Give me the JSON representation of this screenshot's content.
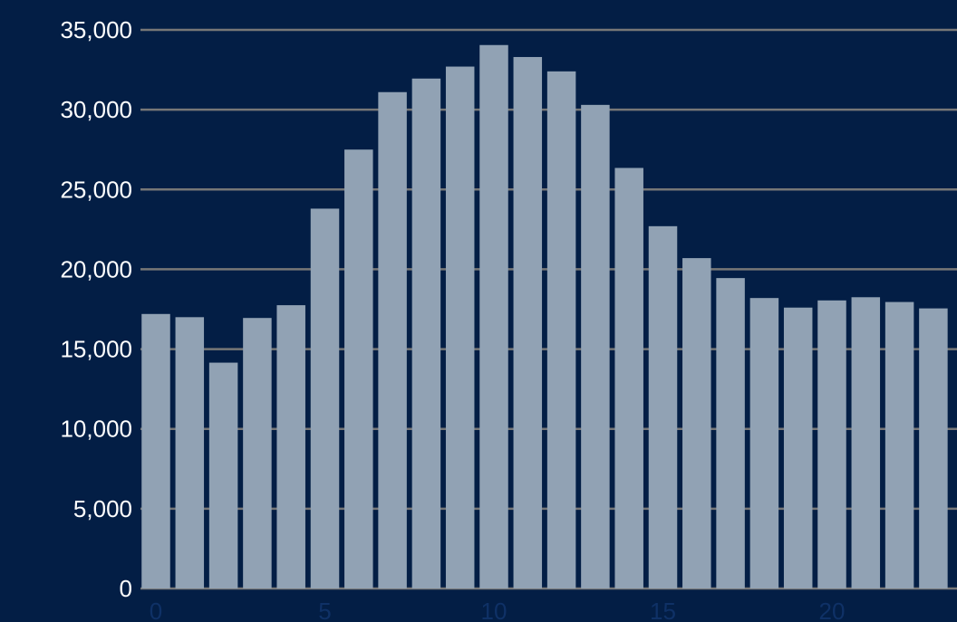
{
  "colors": {
    "background": "#031e45",
    "bar": "#91a2b4",
    "grid": "#777777",
    "ytick_text": "#ffffff",
    "xtick_text": "#0f3166"
  },
  "chart_data": {
    "type": "bar",
    "x": [
      0,
      1,
      2,
      3,
      4,
      5,
      6,
      7,
      8,
      9,
      10,
      11,
      12,
      13,
      14,
      15,
      16,
      17,
      18,
      19,
      20,
      21,
      22,
      23
    ],
    "values": [
      17200,
      17000,
      14150,
      16950,
      17750,
      23800,
      27500,
      31100,
      31950,
      32700,
      34050,
      33300,
      32400,
      30300,
      26350,
      22700,
      20700,
      19450,
      18200,
      17600,
      18050,
      18250,
      17950,
      17550
    ],
    "title": "",
    "xlabel": "",
    "ylabel": "",
    "ylim": [
      0,
      35000
    ],
    "yticks": [
      "0",
      "5,000",
      "10,000",
      "15,000",
      "20,000",
      "25,000",
      "30,000",
      "35,000"
    ],
    "xticks": [
      "0",
      "5",
      "10",
      "15",
      "20"
    ],
    "grid": true,
    "legend": "none"
  }
}
